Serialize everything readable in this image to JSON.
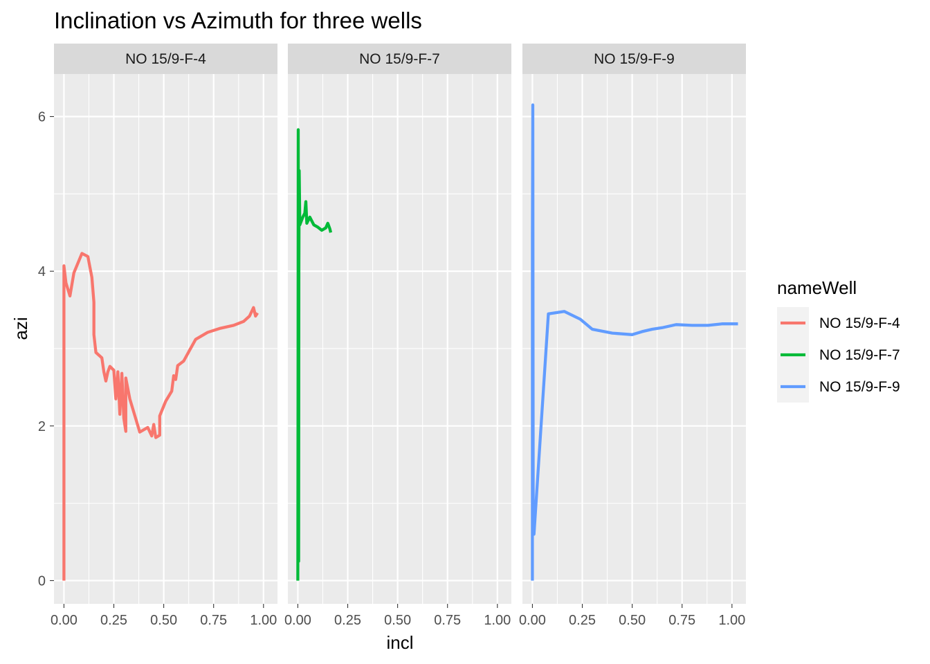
{
  "chart_data": {
    "type": "line",
    "title": "Inclination vs Azimuth for three wells",
    "xlabel": "incl",
    "ylabel": "azi",
    "xlim": [
      -0.05,
      1.07
    ],
    "ylim": [
      -0.3,
      6.55
    ],
    "x_ticks": [
      0.0,
      0.25,
      0.5,
      0.75,
      1.0
    ],
    "x_tick_labels": [
      "0.00",
      "0.25",
      "0.50",
      "0.75",
      "1.00"
    ],
    "y_ticks": [
      0,
      2,
      4,
      6
    ],
    "y_tick_labels": [
      "0",
      "2",
      "4",
      "6"
    ],
    "grid": true,
    "legend": {
      "title": "nameWell",
      "position": "right"
    },
    "series": [
      {
        "name": "NO 15/9-F-4",
        "facet": "NO 15/9-F-4",
        "color": "#F8766D",
        "points": [
          [
            0.0,
            0.0
          ],
          [
            0.0,
            4.07
          ],
          [
            0.01,
            3.85
          ],
          [
            0.03,
            3.68
          ],
          [
            0.05,
            3.98
          ],
          [
            0.09,
            4.23
          ],
          [
            0.12,
            4.19
          ],
          [
            0.14,
            3.92
          ],
          [
            0.15,
            3.6
          ],
          [
            0.15,
            3.18
          ],
          [
            0.16,
            2.95
          ],
          [
            0.19,
            2.88
          ],
          [
            0.2,
            2.7
          ],
          [
            0.21,
            2.58
          ],
          [
            0.22,
            2.7
          ],
          [
            0.23,
            2.77
          ],
          [
            0.25,
            2.72
          ],
          [
            0.26,
            2.35
          ],
          [
            0.27,
            2.7
          ],
          [
            0.28,
            2.15
          ],
          [
            0.29,
            2.68
          ],
          [
            0.3,
            2.1
          ],
          [
            0.31,
            1.93
          ],
          [
            0.31,
            2.62
          ],
          [
            0.33,
            2.35
          ],
          [
            0.38,
            1.92
          ],
          [
            0.42,
            1.98
          ],
          [
            0.44,
            1.87
          ],
          [
            0.45,
            2.02
          ],
          [
            0.46,
            1.85
          ],
          [
            0.48,
            1.88
          ],
          [
            0.48,
            2.13
          ],
          [
            0.51,
            2.32
          ],
          [
            0.54,
            2.45
          ],
          [
            0.55,
            2.65
          ],
          [
            0.56,
            2.6
          ],
          [
            0.57,
            2.78
          ],
          [
            0.6,
            2.84
          ],
          [
            0.63,
            2.98
          ],
          [
            0.66,
            3.12
          ],
          [
            0.72,
            3.21
          ],
          [
            0.78,
            3.26
          ],
          [
            0.85,
            3.3
          ],
          [
            0.9,
            3.35
          ],
          [
            0.93,
            3.42
          ],
          [
            0.95,
            3.53
          ],
          [
            0.96,
            3.42
          ],
          [
            0.97,
            3.46
          ]
        ]
      },
      {
        "name": "NO 15/9-F-7",
        "facet": "NO 15/9-F-7",
        "color": "#00BA38",
        "points": [
          [
            0.0,
            0.0
          ],
          [
            0.001,
            2.5
          ],
          [
            0.002,
            5.83
          ],
          [
            0.003,
            4.4
          ],
          [
            0.004,
            0.25
          ],
          [
            0.005,
            4.0
          ],
          [
            0.007,
            5.3
          ],
          [
            0.01,
            4.6
          ],
          [
            0.025,
            4.7
          ],
          [
            0.035,
            4.75
          ],
          [
            0.04,
            4.9
          ],
          [
            0.045,
            4.62
          ],
          [
            0.06,
            4.7
          ],
          [
            0.08,
            4.6
          ],
          [
            0.1,
            4.57
          ],
          [
            0.12,
            4.53
          ],
          [
            0.14,
            4.56
          ],
          [
            0.15,
            4.62
          ],
          [
            0.16,
            4.55
          ],
          [
            0.165,
            4.5
          ]
        ]
      },
      {
        "name": "NO 15/9-F-9",
        "facet": "NO 15/9-F-9",
        "color": "#619CFF",
        "points": [
          [
            0.0,
            0.0
          ],
          [
            0.0,
            4.45
          ],
          [
            0.002,
            6.15
          ],
          [
            0.004,
            0.62
          ],
          [
            0.008,
            0.6
          ],
          [
            0.08,
            3.45
          ],
          [
            0.16,
            3.48
          ],
          [
            0.24,
            3.38
          ],
          [
            0.3,
            3.25
          ],
          [
            0.4,
            3.2
          ],
          [
            0.5,
            3.18
          ],
          [
            0.55,
            3.22
          ],
          [
            0.6,
            3.25
          ],
          [
            0.65,
            3.27
          ],
          [
            0.72,
            3.31
          ],
          [
            0.8,
            3.3
          ],
          [
            0.88,
            3.3
          ],
          [
            0.95,
            3.32
          ],
          [
            1.0,
            3.32
          ],
          [
            1.03,
            3.32
          ]
        ]
      }
    ]
  }
}
